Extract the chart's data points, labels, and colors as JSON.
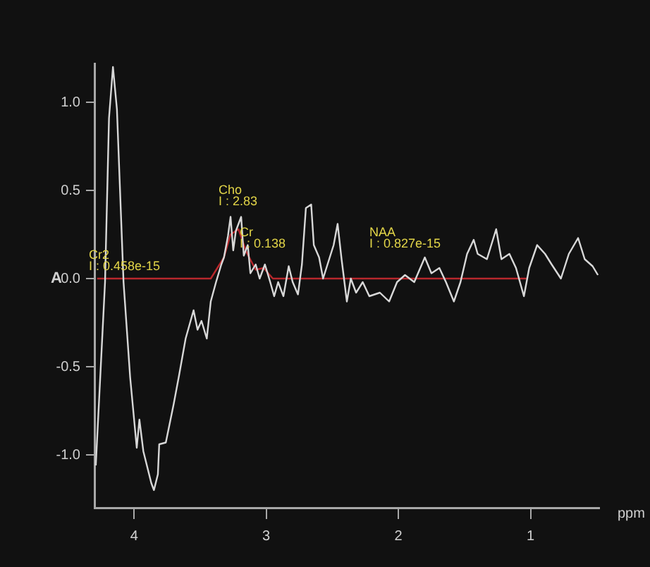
{
  "chart_data": {
    "type": "line",
    "xlabel": "ppm",
    "ylabel": "A",
    "xlim": [
      4.3,
      0.48
    ],
    "xticks": [
      4,
      3,
      2,
      1
    ],
    "ylim": [
      -1.3,
      1.22
    ],
    "yticks": [
      {
        "value": -1,
        "label": "-1.0"
      },
      {
        "value": -0.5,
        "label": "-0.5"
      },
      {
        "value": 0,
        "label": "0.0"
      },
      {
        "value": 0.5,
        "label": "0.5"
      },
      {
        "value": 1,
        "label": "1.0"
      }
    ],
    "marker": "none",
    "line_style": "solid",
    "series": [
      {
        "color": "#d8d8d8",
        "x": [
          4.29,
          4.22,
          4.19,
          4.16,
          4.13,
          4.08,
          4.03,
          3.98,
          3.96,
          3.93,
          3.87,
          3.85,
          3.82,
          3.81,
          3.76,
          3.7,
          3.66,
          3.61,
          3.55,
          3.52,
          3.49,
          3.45,
          3.42,
          3.38,
          3.34,
          3.32,
          3.29,
          3.27,
          3.25,
          3.23,
          3.19,
          3.17,
          3.14,
          3.12,
          3.08,
          3.05,
          3.01,
          2.97,
          2.94,
          2.91,
          2.87,
          2.83,
          2.8,
          2.76,
          2.73,
          2.7,
          2.66,
          2.64,
          2.6,
          2.57,
          2.49,
          2.46,
          2.43,
          2.39,
          2.36,
          2.32,
          2.27,
          2.22,
          2.14,
          2.07,
          2.01,
          1.95,
          1.88,
          1.8,
          1.75,
          1.69,
          1.64,
          1.58,
          1.53,
          1.48,
          1.43,
          1.4,
          1.33,
          1.26,
          1.22,
          1.16,
          1.11,
          1.05,
          1.01,
          0.95,
          0.89,
          0.84,
          0.77,
          0.71,
          0.64,
          0.59,
          0.53,
          0.49
        ],
        "values": [
          -1.06,
          -0.02,
          0.91,
          1.2,
          0.96,
          -0.02,
          -0.56,
          -0.96,
          -0.8,
          -0.98,
          -1.16,
          -1.2,
          -1.11,
          -0.94,
          -0.93,
          -0.71,
          -0.55,
          -0.34,
          -0.18,
          -0.29,
          -0.24,
          -0.34,
          -0.13,
          -0.02,
          0.08,
          0.12,
          0.24,
          0.35,
          0.16,
          0.27,
          0.35,
          0.13,
          0.19,
          0.03,
          0.08,
          0,
          0.08,
          -0.02,
          -0.1,
          -0.02,
          -0.1,
          0.07,
          -0.02,
          -0.09,
          0.08,
          0.4,
          0.42,
          0.19,
          0.12,
          0,
          0.19,
          0.31,
          0.11,
          -0.13,
          0,
          -0.08,
          -0.02,
          -0.1,
          -0.08,
          -0.13,
          -0.02,
          0.02,
          -0.02,
          0.12,
          0.03,
          0.06,
          -0.02,
          -0.13,
          -0.02,
          0.14,
          0.22,
          0.14,
          0.11,
          0.28,
          0.11,
          0.14,
          0.06,
          -0.1,
          0.06,
          0.19,
          0.14,
          0.08,
          0,
          0.14,
          0.23,
          0.11,
          0.07,
          0.02
        ]
      },
      {
        "color": "#b8282c",
        "x": [
          4.28,
          3.42,
          3.32,
          3.27,
          3.21,
          3.15,
          3.08,
          3.02,
          2.95,
          1.03
        ],
        "values": [
          0,
          0,
          0.12,
          0.25,
          0.28,
          0.15,
          0.05,
          0.06,
          0,
          0
        ]
      }
    ],
    "annotations": [
      "Cr2",
      "I : 0.458e-15",
      "Cho",
      "I : 2.83",
      "Cr",
      "I : 0.138",
      "NAA",
      "I : 0.827e-15"
    ]
  }
}
